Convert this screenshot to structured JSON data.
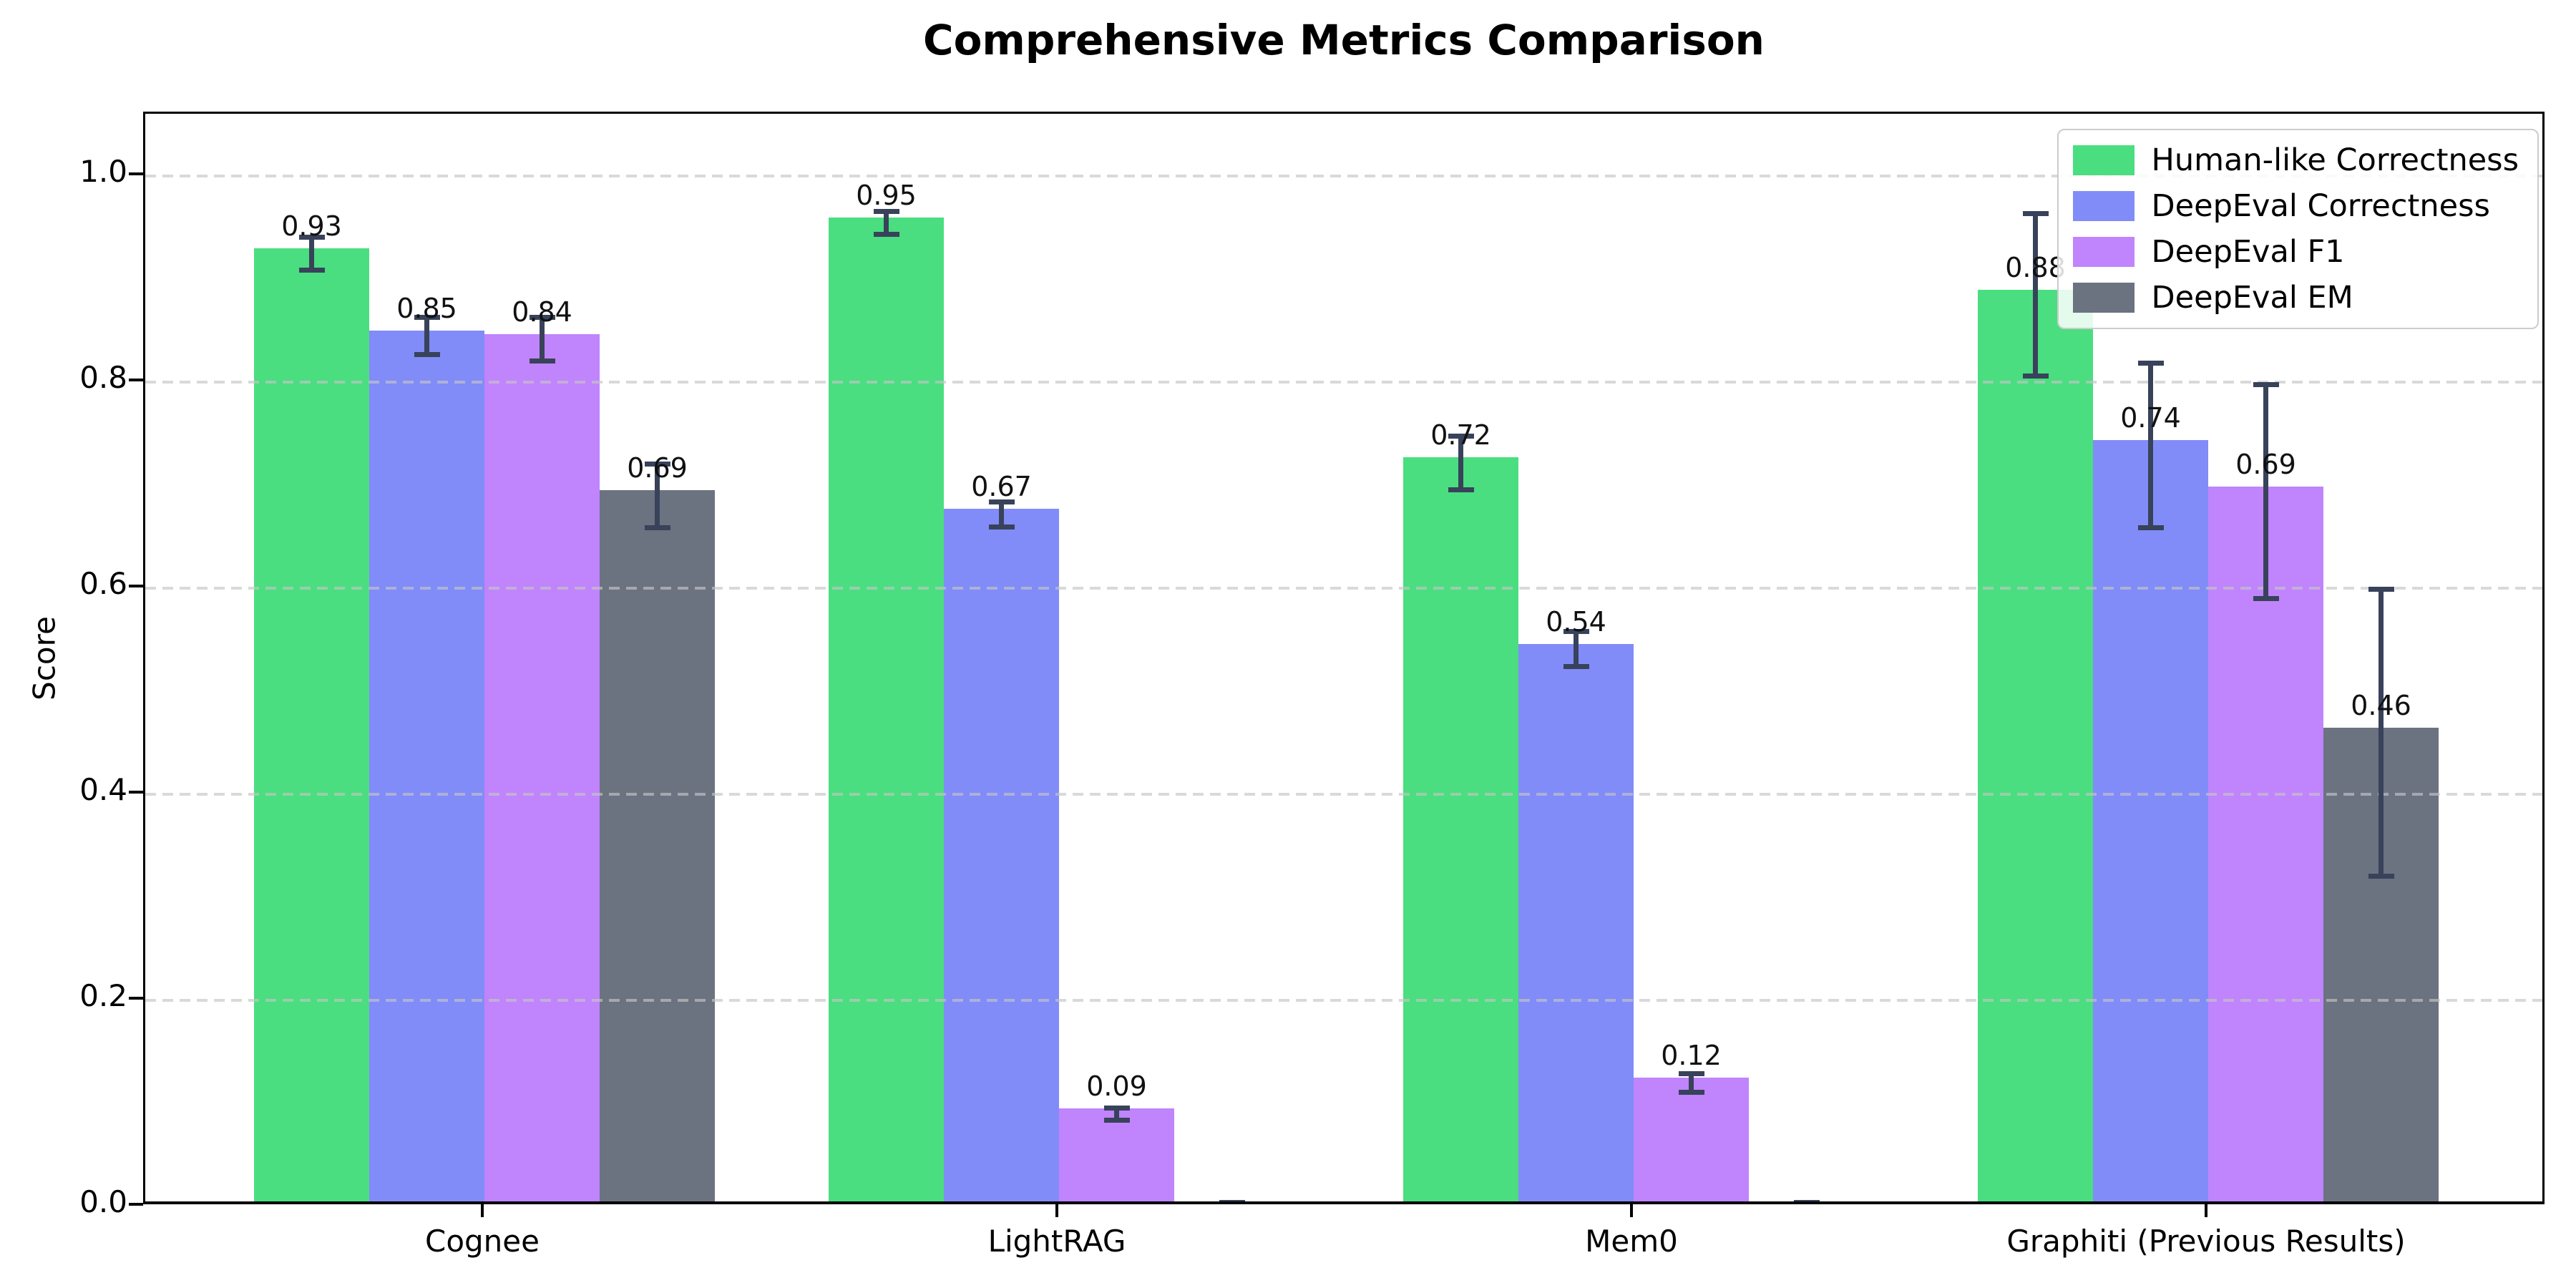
{
  "chart_data": {
    "type": "bar",
    "title": "Comprehensive Metrics Comparison",
    "xlabel": "",
    "ylabel": "Score",
    "categories": [
      "Cognee",
      "LightRAG",
      "Mem0",
      "Graphiti (Previous Results)"
    ],
    "series": [
      {
        "name": "Human-like Correctness",
        "color": "#4ade80",
        "values": [
          0.925,
          0.955,
          0.722,
          0.885
        ],
        "errors": [
          0.016,
          0.011,
          0.026,
          0.079
        ],
        "labels": [
          "0.93",
          "0.95",
          "0.72",
          "0.88"
        ]
      },
      {
        "name": "DeepEval Correctness",
        "color": "#818cf8",
        "values": [
          0.845,
          0.672,
          0.541,
          0.739
        ],
        "errors": [
          0.018,
          0.012,
          0.017,
          0.08
        ],
        "labels": [
          "0.85",
          "0.67",
          "0.54",
          "0.74"
        ]
      },
      {
        "name": "DeepEval F1",
        "color": "#c084fc",
        "values": [
          0.842,
          0.09,
          0.12,
          0.694
        ],
        "errors": [
          0.021,
          0.006,
          0.009,
          0.104
        ],
        "labels": [
          "0.84",
          "0.09",
          "0.12",
          "0.69"
        ]
      },
      {
        "name": "DeepEval EM",
        "color": "#6b7280",
        "values": [
          0.69,
          0.0,
          0.0,
          0.46
        ],
        "errors": [
          0.031,
          0.004,
          0.004,
          0.139
        ],
        "labels": [
          "0.69",
          null,
          null,
          "0.46"
        ]
      }
    ],
    "yticks": [
      0.0,
      0.2,
      0.4,
      0.6,
      0.8,
      1.0
    ],
    "ylim": [
      0,
      1.06
    ],
    "grid": "horizontal-dashed",
    "legend_position": "upper right",
    "colors": {
      "error_bar": "#38425a",
      "gridline": "#c5c5c5",
      "axis": "#000000",
      "text": "#000000",
      "background": "#ffffff"
    }
  }
}
